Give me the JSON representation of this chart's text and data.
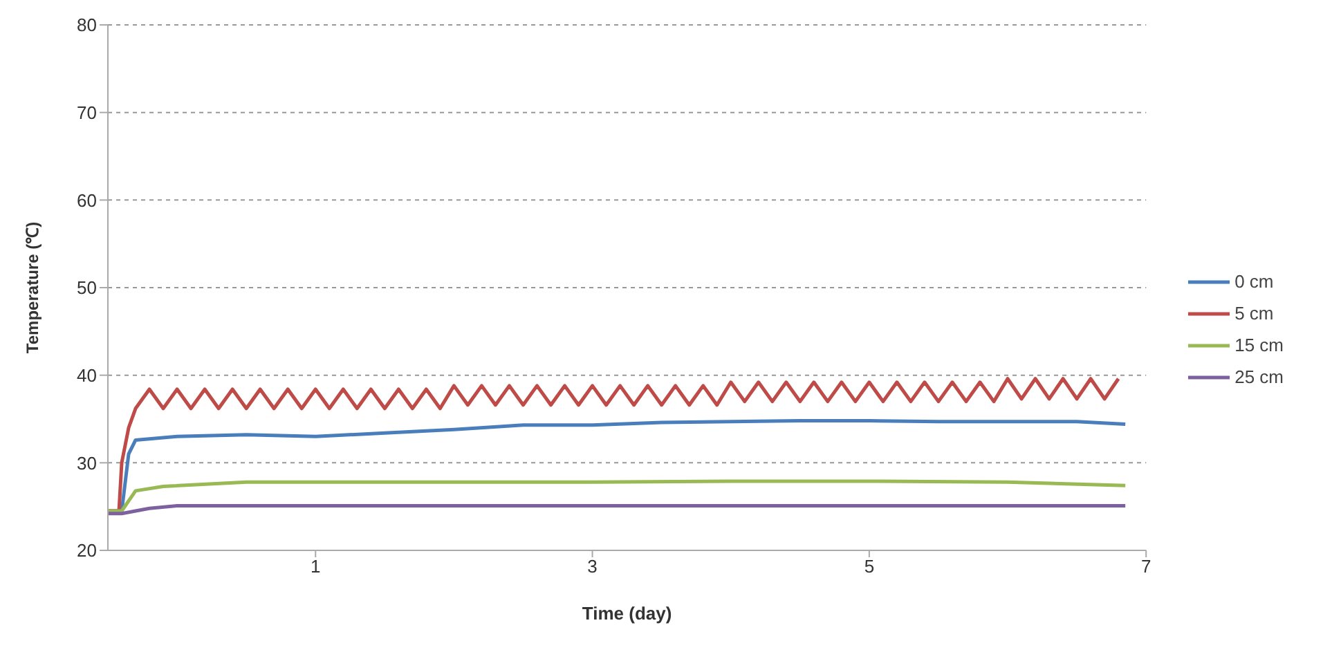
{
  "chart_data": {
    "type": "line",
    "xlabel": "Time (day)",
    "ylabel": "Temperature (℃)",
    "xlim": [
      -0.5,
      7
    ],
    "xticks": [
      1,
      3,
      5,
      7
    ],
    "ylim": [
      20,
      80
    ],
    "yticks": [
      20,
      30,
      40,
      50,
      60,
      70,
      80
    ],
    "grid": "y",
    "legend": "right",
    "marker": "none",
    "line_style": "solid",
    "series": [
      {
        "name": "0 cm",
        "color": "#4a7ebb",
        "x": [
          -0.5,
          -0.4,
          -0.35,
          -0.3,
          0,
          0.5,
          1,
          1.5,
          2,
          2.5,
          3,
          3.5,
          4,
          4.5,
          5,
          5.5,
          6,
          6.5,
          6.85
        ],
        "values": [
          24.5,
          24.5,
          31,
          32.6,
          33,
          33.2,
          33,
          33.4,
          33.8,
          34.3,
          34.3,
          34.6,
          34.7,
          34.8,
          34.8,
          34.7,
          34.7,
          34.7,
          34.4
        ]
      },
      {
        "name": "5 cm",
        "color": "#be4b48",
        "x": [
          -0.5,
          -0.42,
          -0.4,
          -0.35,
          -0.3,
          -0.2,
          -0.1,
          0,
          0.1,
          0.2,
          0.3,
          0.4,
          0.5,
          0.6,
          0.7,
          0.8,
          0.9,
          1,
          1.1,
          1.2,
          1.3,
          1.4,
          1.5,
          1.6,
          1.7,
          1.8,
          1.9,
          2,
          2.1,
          2.2,
          2.3,
          2.4,
          2.5,
          2.6,
          2.7,
          2.8,
          2.9,
          3,
          3.1,
          3.2,
          3.3,
          3.4,
          3.5,
          3.6,
          3.7,
          3.8,
          3.9,
          4,
          4.1,
          4.2,
          4.3,
          4.4,
          4.5,
          4.6,
          4.7,
          4.8,
          4.9,
          5,
          5.1,
          5.2,
          5.3,
          5.4,
          5.5,
          5.6,
          5.7,
          5.8,
          5.9,
          6,
          6.1,
          6.2,
          6.3,
          6.4,
          6.5,
          6.6,
          6.7,
          6.8
        ],
        "values": [
          24.5,
          24.5,
          30,
          34,
          36.2,
          38.4,
          36.2,
          38.4,
          36.2,
          38.4,
          36.2,
          38.4,
          36.2,
          38.4,
          36.2,
          38.4,
          36.2,
          38.4,
          36.2,
          38.4,
          36.2,
          38.4,
          36.2,
          38.4,
          36.2,
          38.4,
          36.2,
          38.8,
          36.6,
          38.8,
          36.6,
          38.8,
          36.6,
          38.8,
          36.6,
          38.8,
          36.6,
          38.8,
          36.6,
          38.8,
          36.6,
          38.8,
          36.6,
          38.8,
          36.6,
          38.8,
          36.6,
          39.2,
          37,
          39.2,
          37,
          39.2,
          37,
          39.2,
          37,
          39.2,
          37,
          39.2,
          37,
          39.2,
          37,
          39.2,
          37,
          39.2,
          37,
          39.2,
          37,
          39.6,
          37.3,
          39.6,
          37.3,
          39.6,
          37.3,
          39.6,
          37.3,
          39.6
        ]
      },
      {
        "name": "15 cm",
        "color": "#98b954",
        "x": [
          -0.5,
          -0.4,
          -0.3,
          -0.1,
          0.5,
          1,
          2,
          3,
          4,
          5,
          6,
          6.85
        ],
        "values": [
          24.5,
          24.5,
          26.8,
          27.3,
          27.8,
          27.8,
          27.8,
          27.8,
          27.9,
          27.9,
          27.8,
          27.4
        ]
      },
      {
        "name": "25 cm",
        "color": "#7d60a0",
        "x": [
          -0.5,
          -0.4,
          -0.2,
          0,
          1,
          2,
          3,
          4,
          5,
          6,
          6.85
        ],
        "values": [
          24.2,
          24.2,
          24.8,
          25.1,
          25.1,
          25.1,
          25.1,
          25.1,
          25.1,
          25.1,
          25.1
        ]
      }
    ]
  }
}
